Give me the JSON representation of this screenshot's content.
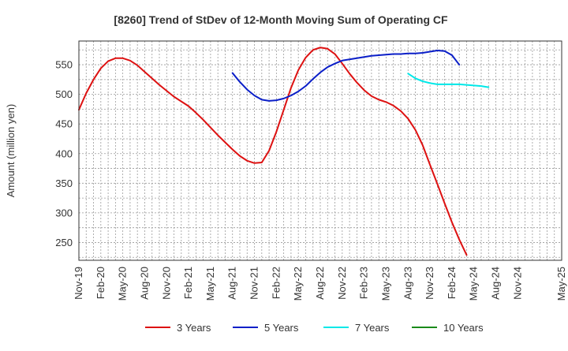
{
  "chart_data": {
    "type": "line",
    "title": "[8260]  Trend of StDev of 12-Month Moving Sum of Operating CF",
    "xlabel": "",
    "ylabel": "Amount (million yen)",
    "ylim": [
      220,
      590
    ],
    "yticks": [
      250,
      300,
      350,
      400,
      450,
      500,
      550
    ],
    "x_tick_labels": [
      "Nov-19",
      "Feb-20",
      "May-20",
      "Aug-20",
      "Nov-20",
      "Feb-21",
      "May-21",
      "Aug-21",
      "Nov-21",
      "Feb-22",
      "May-22",
      "Aug-22",
      "Nov-22",
      "Feb-23",
      "May-23",
      "Aug-23",
      "Nov-23",
      "Feb-24",
      "May-24",
      "Aug-24",
      "Nov-24",
      "May-25"
    ],
    "x_tick_labels_note": "",
    "x_months": [
      "Nov-19",
      "Dec-19",
      "Jan-20",
      "Feb-20",
      "Mar-20",
      "Apr-20",
      "May-20",
      "Jun-20",
      "Jul-20",
      "Aug-20",
      "Sep-20",
      "Oct-20",
      "Nov-20",
      "Dec-20",
      "Jan-21",
      "Feb-21",
      "Mar-21",
      "Apr-21",
      "May-21",
      "Jun-21",
      "Jul-21",
      "Aug-21",
      "Sep-21",
      "Oct-21",
      "Nov-21",
      "Dec-21",
      "Jan-22",
      "Feb-22",
      "Mar-22",
      "Apr-22",
      "May-22",
      "Jun-22",
      "Jul-22",
      "Aug-22",
      "Sep-22",
      "Oct-22",
      "Nov-22",
      "Dec-22",
      "Jan-23",
      "Feb-23",
      "Mar-23",
      "Apr-23",
      "May-23",
      "Jun-23",
      "Jul-23",
      "Aug-23",
      "Sep-23",
      "Oct-23",
      "Nov-23",
      "Dec-23",
      "Jan-24",
      "Feb-24",
      "Mar-24",
      "Apr-24",
      "May-24",
      "Jun-24",
      "Jul-24",
      "Aug-24",
      "Sep-24",
      "Oct-24",
      "Nov-24",
      "Dec-24",
      "Jan-25",
      "Feb-25",
      "Mar-25",
      "Apr-25",
      "May-25"
    ],
    "grid": true,
    "legend_position": "bottom",
    "series": [
      {
        "name": "3 Years",
        "color": "#dd1111",
        "start": "Nov-19",
        "values": [
          474,
          502,
          525,
          544,
          556,
          561,
          561,
          557,
          549,
          538,
          527,
          516,
          506,
          496,
          488,
          480,
          469,
          457,
          444,
          431,
          419,
          407,
          396,
          388,
          384,
          385,
          405,
          437,
          474,
          511,
          541,
          562,
          575,
          579,
          577,
          568,
          552,
          535,
          520,
          507,
          497,
          491,
          487,
          481,
          472,
          459,
          440,
          414,
          381,
          349,
          316,
          284,
          255,
          229
        ]
      },
      {
        "name": "5 Years",
        "color": "#0b1fc8",
        "start": "Aug-21",
        "values": [
          536,
          521,
          508,
          498,
          491,
          489,
          490,
          493,
          498,
          505,
          514,
          526,
          537,
          546,
          552,
          557,
          559,
          561,
          563,
          565,
          566,
          567,
          568,
          568,
          569,
          569,
          570,
          572,
          574,
          573,
          566,
          550
        ]
      },
      {
        "name": "7 Years",
        "color": "#00e8e8",
        "start": "Aug-23",
        "values": [
          535,
          527,
          522,
          519,
          517,
          517,
          517,
          517,
          516,
          515,
          514,
          512
        ]
      },
      {
        "name": "10 Years",
        "color": "#1a8a1a",
        "start": "Aug-24",
        "values": []
      }
    ]
  }
}
